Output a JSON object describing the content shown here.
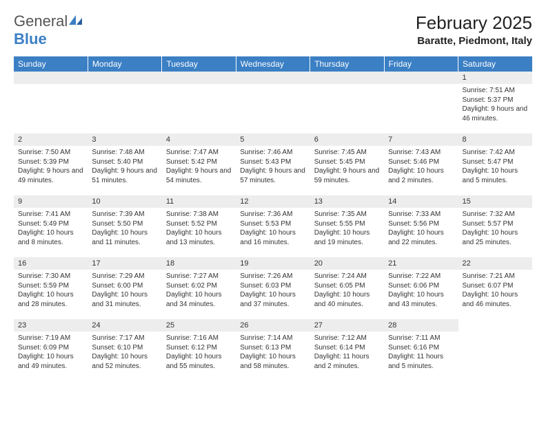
{
  "logo": {
    "text_gray": "General",
    "text_blue": "Blue"
  },
  "title": "February 2025",
  "location": "Baratte, Piedmont, Italy",
  "colors": {
    "header_bg": "#3b7fc4",
    "header_text": "#ffffff",
    "daynum_bg": "#ededed",
    "body_text": "#333333",
    "page_bg": "#ffffff"
  },
  "layout": {
    "columns": 7,
    "rows": 5,
    "first_weekday_index": 6
  },
  "weekdays": [
    "Sunday",
    "Monday",
    "Tuesday",
    "Wednesday",
    "Thursday",
    "Friday",
    "Saturday"
  ],
  "days": [
    {
      "n": 1,
      "sunrise": "7:51 AM",
      "sunset": "5:37 PM",
      "daylight": "9 hours and 46 minutes."
    },
    {
      "n": 2,
      "sunrise": "7:50 AM",
      "sunset": "5:39 PM",
      "daylight": "9 hours and 49 minutes."
    },
    {
      "n": 3,
      "sunrise": "7:48 AM",
      "sunset": "5:40 PM",
      "daylight": "9 hours and 51 minutes."
    },
    {
      "n": 4,
      "sunrise": "7:47 AM",
      "sunset": "5:42 PM",
      "daylight": "9 hours and 54 minutes."
    },
    {
      "n": 5,
      "sunrise": "7:46 AM",
      "sunset": "5:43 PM",
      "daylight": "9 hours and 57 minutes."
    },
    {
      "n": 6,
      "sunrise": "7:45 AM",
      "sunset": "5:45 PM",
      "daylight": "9 hours and 59 minutes."
    },
    {
      "n": 7,
      "sunrise": "7:43 AM",
      "sunset": "5:46 PM",
      "daylight": "10 hours and 2 minutes."
    },
    {
      "n": 8,
      "sunrise": "7:42 AM",
      "sunset": "5:47 PM",
      "daylight": "10 hours and 5 minutes."
    },
    {
      "n": 9,
      "sunrise": "7:41 AM",
      "sunset": "5:49 PM",
      "daylight": "10 hours and 8 minutes."
    },
    {
      "n": 10,
      "sunrise": "7:39 AM",
      "sunset": "5:50 PM",
      "daylight": "10 hours and 11 minutes."
    },
    {
      "n": 11,
      "sunrise": "7:38 AM",
      "sunset": "5:52 PM",
      "daylight": "10 hours and 13 minutes."
    },
    {
      "n": 12,
      "sunrise": "7:36 AM",
      "sunset": "5:53 PM",
      "daylight": "10 hours and 16 minutes."
    },
    {
      "n": 13,
      "sunrise": "7:35 AM",
      "sunset": "5:55 PM",
      "daylight": "10 hours and 19 minutes."
    },
    {
      "n": 14,
      "sunrise": "7:33 AM",
      "sunset": "5:56 PM",
      "daylight": "10 hours and 22 minutes."
    },
    {
      "n": 15,
      "sunrise": "7:32 AM",
      "sunset": "5:57 PM",
      "daylight": "10 hours and 25 minutes."
    },
    {
      "n": 16,
      "sunrise": "7:30 AM",
      "sunset": "5:59 PM",
      "daylight": "10 hours and 28 minutes."
    },
    {
      "n": 17,
      "sunrise": "7:29 AM",
      "sunset": "6:00 PM",
      "daylight": "10 hours and 31 minutes."
    },
    {
      "n": 18,
      "sunrise": "7:27 AM",
      "sunset": "6:02 PM",
      "daylight": "10 hours and 34 minutes."
    },
    {
      "n": 19,
      "sunrise": "7:26 AM",
      "sunset": "6:03 PM",
      "daylight": "10 hours and 37 minutes."
    },
    {
      "n": 20,
      "sunrise": "7:24 AM",
      "sunset": "6:05 PM",
      "daylight": "10 hours and 40 minutes."
    },
    {
      "n": 21,
      "sunrise": "7:22 AM",
      "sunset": "6:06 PM",
      "daylight": "10 hours and 43 minutes."
    },
    {
      "n": 22,
      "sunrise": "7:21 AM",
      "sunset": "6:07 PM",
      "daylight": "10 hours and 46 minutes."
    },
    {
      "n": 23,
      "sunrise": "7:19 AM",
      "sunset": "6:09 PM",
      "daylight": "10 hours and 49 minutes."
    },
    {
      "n": 24,
      "sunrise": "7:17 AM",
      "sunset": "6:10 PM",
      "daylight": "10 hours and 52 minutes."
    },
    {
      "n": 25,
      "sunrise": "7:16 AM",
      "sunset": "6:12 PM",
      "daylight": "10 hours and 55 minutes."
    },
    {
      "n": 26,
      "sunrise": "7:14 AM",
      "sunset": "6:13 PM",
      "daylight": "10 hours and 58 minutes."
    },
    {
      "n": 27,
      "sunrise": "7:12 AM",
      "sunset": "6:14 PM",
      "daylight": "11 hours and 2 minutes."
    },
    {
      "n": 28,
      "sunrise": "7:11 AM",
      "sunset": "6:16 PM",
      "daylight": "11 hours and 5 minutes."
    }
  ],
  "labels": {
    "sunrise": "Sunrise:",
    "sunset": "Sunset:",
    "daylight": "Daylight:"
  }
}
